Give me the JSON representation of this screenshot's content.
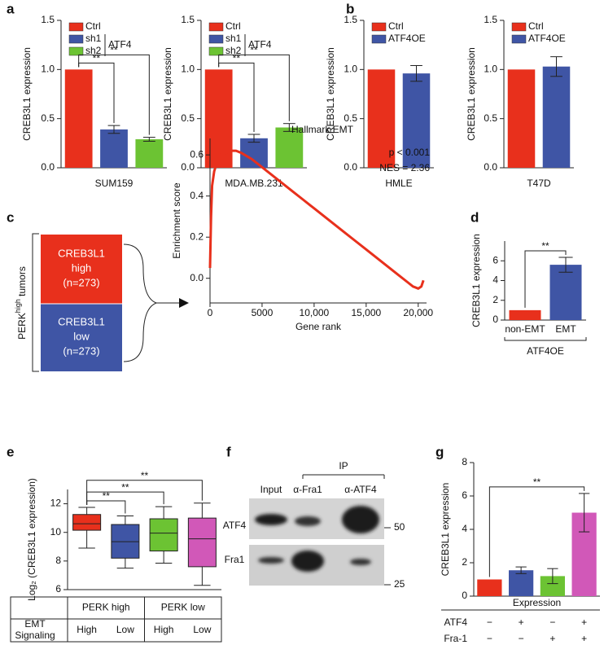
{
  "panel_labels": [
    "a",
    "b",
    "c",
    "d",
    "e",
    "f",
    "g"
  ],
  "chart_data": [
    {
      "type": "bar",
      "y_label": "CREB3L1 expression",
      "x_label": "SUM159",
      "categories": [
        "Ctrl",
        "sh1",
        "sh2"
      ],
      "colors": [
        "#e8301c",
        "#3f55a5",
        "#6cc333"
      ],
      "values": [
        1.0,
        0.39,
        0.29
      ],
      "errors": [
        null,
        0.04,
        0.02
      ],
      "ylim": [
        0,
        1.5
      ],
      "yticks": [
        {
          "value": 0,
          "label": "0.0"
        },
        0.5,
        {
          "value": 1,
          "label": "1.0"
        },
        1.5
      ],
      "legend": "upper left",
      "legend_group": {
        "label": "ATF4",
        "members": [
          "sh1",
          "sh2"
        ]
      },
      "comparisons": [
        {
          "pair": [
            0,
            1
          ],
          "label": "**"
        },
        {
          "pair": [
            0,
            2
          ],
          "label": "**"
        }
      ]
    },
    {
      "type": "bar",
      "y_label": "CREB3L1 expression",
      "x_label": "MDA.MB.231",
      "categories": [
        "Ctrl",
        "sh1",
        "sh2"
      ],
      "colors": [
        "#e8301c",
        "#3f55a5",
        "#6cc333"
      ],
      "values": [
        1.0,
        0.3,
        0.41
      ],
      "errors": [
        null,
        0.04,
        0.04
      ],
      "ylim": [
        0,
        1.5
      ],
      "yticks": [
        {
          "value": 0,
          "label": "0.0"
        },
        0.5,
        {
          "value": 1,
          "label": "1.0"
        },
        1.5
      ],
      "legend": "upper left",
      "legend_group": {
        "label": "ATF4",
        "members": [
          "sh1",
          "sh2"
        ]
      },
      "comparisons": [
        {
          "pair": [
            0,
            1
          ],
          "label": "**"
        },
        {
          "pair": [
            0,
            2
          ],
          "label": "**"
        }
      ]
    },
    {
      "type": "bar",
      "y_label": "CREB3L1 expression",
      "x_label": "HMLE",
      "categories": [
        "Ctrl",
        "ATF4OE"
      ],
      "colors": [
        "#e8301c",
        "#3f55a5"
      ],
      "values": [
        1.0,
        0.96
      ],
      "errors": [
        null,
        0.08
      ],
      "ylim": [
        0,
        1.5
      ],
      "yticks": [
        {
          "value": 0,
          "label": "0.0"
        },
        0.5,
        {
          "value": 1,
          "label": "1.0"
        },
        1.5
      ],
      "legend": "upper left"
    },
    {
      "type": "bar",
      "y_label": "CREB3L1 expression",
      "x_label": "T47D",
      "categories": [
        "Ctrl",
        "ATF4OE"
      ],
      "colors": [
        "#e8301c",
        "#3f55a5"
      ],
      "values": [
        1.0,
        1.03
      ],
      "errors": [
        null,
        0.1
      ],
      "ylim": [
        0,
        1.5
      ],
      "yticks": [
        {
          "value": 0,
          "label": "0.0"
        },
        0.5,
        {
          "value": 1,
          "label": "1.0"
        },
        1.5
      ],
      "legend": "upper left"
    },
    {
      "type": "line",
      "title": "Hallmark EMT",
      "x_label": "Gene rank",
      "y_label": "Enrichment score",
      "x": [
        0,
        100,
        200,
        400,
        700,
        1000,
        1500,
        2000,
        2500,
        3000,
        4000,
        5000,
        6000,
        7000,
        8000,
        9000,
        10000,
        11000,
        12000,
        13000,
        14000,
        15000,
        16000,
        17000,
        18000,
        19000,
        19500,
        20000,
        20300,
        20500
      ],
      "values": [
        0.05,
        0.3,
        0.45,
        0.52,
        0.57,
        0.6,
        0.61,
        0.62,
        0.62,
        0.61,
        0.58,
        0.54,
        0.5,
        0.46,
        0.42,
        0.38,
        0.34,
        0.3,
        0.26,
        0.22,
        0.18,
        0.14,
        0.1,
        0.06,
        0.02,
        -0.02,
        -0.04,
        -0.05,
        -0.04,
        -0.01
      ],
      "color": "#e8301c",
      "xlim": [
        0,
        20800
      ],
      "xticks": [
        0,
        5000,
        {
          "value": 10000,
          "label": "10,000"
        },
        {
          "value": 15000,
          "label": "15,000"
        },
        {
          "value": 20000,
          "label": "20,000"
        }
      ],
      "ylim": [
        -0.12,
        0.68
      ],
      "yticks": [
        {
          "value": 0,
          "label": "0.0"
        },
        0.2,
        0.4,
        0.6
      ],
      "annotations": [
        "p < 0.001",
        "NES = 2.36"
      ]
    },
    {
      "type": "bar",
      "y_label": "CREB3L1 expression",
      "categories": [
        "non-EMT",
        "EMT"
      ],
      "colors": [
        "#e8301c",
        "#3f55a5"
      ],
      "values": [
        1.0,
        5.6
      ],
      "errors": [
        null,
        0.75
      ],
      "ylim": [
        0,
        8
      ],
      "yticks": [
        0,
        2,
        4,
        6
      ],
      "comparisons": [
        {
          "pair": [
            0,
            1
          ],
          "label": "**"
        }
      ],
      "group_label": "ATF4OE"
    },
    {
      "type": "box",
      "y_label": "Log₂ (CREB3L1 expression)",
      "ylim": [
        6,
        13
      ],
      "yticks": [
        6,
        8,
        10,
        12
      ],
      "boxes": [
        {
          "color": "#e8301c",
          "whislo": 8.9,
          "q1": 10.15,
          "med": 10.6,
          "q3": 11.25,
          "whishi": 11.75
        },
        {
          "color": "#3f55a5",
          "whislo": 7.5,
          "q1": 8.2,
          "med": 9.35,
          "q3": 10.55,
          "whishi": 11.15
        },
        {
          "color": "#6cc333",
          "whislo": 7.85,
          "q1": 8.7,
          "med": 9.95,
          "q3": 10.95,
          "whishi": 11.8
        },
        {
          "color": "#d158b8",
          "whislo": 6.3,
          "q1": 7.6,
          "med": 9.55,
          "q3": 11.0,
          "whishi": 12.05
        }
      ],
      "groups": [
        "PERK high",
        "PERK low"
      ],
      "row_label": [
        "EMT",
        "Signaling"
      ],
      "categories": [
        "High",
        "Low",
        "High",
        "Low"
      ],
      "comparisons": [
        {
          "pair": [
            0,
            1
          ],
          "label": "**"
        },
        {
          "pair": [
            0,
            2
          ],
          "label": "**"
        },
        {
          "pair": [
            0,
            3
          ],
          "label": "**"
        }
      ]
    },
    {
      "type": "bar",
      "y_label": "CREB3L1 expression",
      "colors": [
        "#e8301c",
        "#3f55a5",
        "#6cc333",
        "#d158b8"
      ],
      "values": [
        1.0,
        1.55,
        1.2,
        5.0
      ],
      "errors": [
        null,
        0.2,
        0.45,
        1.15
      ],
      "ylim": [
        0,
        8
      ],
      "yticks": [
        0,
        2,
        4,
        6,
        8
      ],
      "comparisons": [
        {
          "pair": [
            0,
            3
          ],
          "label": "**"
        }
      ],
      "table": {
        "title": "Expression",
        "rows": [
          {
            "label": "ATF4",
            "cells": [
              "−",
              "+",
              "−",
              "+"
            ]
          },
          {
            "label": "Fra-1",
            "cells": [
              "−",
              "−",
              "+",
              "+"
            ]
          }
        ]
      }
    }
  ],
  "schematic": {
    "group_label": [
      "PERK",
      "high",
      "tumors"
    ],
    "high": [
      "CREB3L1",
      "high",
      "(n=273)"
    ],
    "low": [
      "CREB3L1",
      "low",
      "(n=273)"
    ]
  },
  "blot": {
    "ip_label": "IP",
    "lanes": [
      "Input",
      "α-Fra1",
      "α-ATF4"
    ],
    "rows": [
      "ATF4",
      "Fra1"
    ],
    "markers": [
      50,
      25
    ]
  }
}
